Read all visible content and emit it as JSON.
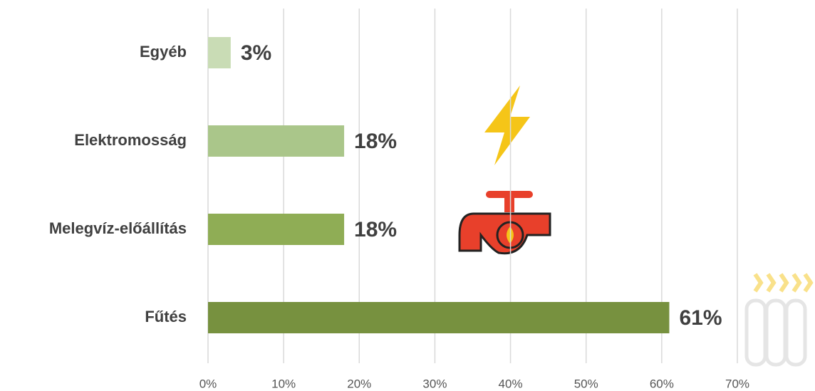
{
  "chart_data": {
    "type": "barh",
    "categories": [
      "Egyéb",
      "Elektromosság",
      "Melegvíz-előállítás",
      "Fűtés"
    ],
    "values": [
      3,
      18,
      18,
      61
    ],
    "value_labels": [
      "3%",
      "18%",
      "18%",
      "61%"
    ],
    "colors": [
      "#c9dcb5",
      "#aac68a",
      "#8fad55",
      "#77913f"
    ],
    "xlim": [
      0,
      70
    ],
    "xticks": [
      {
        "value": 0,
        "label": "0%"
      },
      {
        "value": 10,
        "label": "10%"
      },
      {
        "value": 20,
        "label": "20%"
      },
      {
        "value": 30,
        "label": "30%"
      },
      {
        "value": 40,
        "label": "40%"
      },
      {
        "value": 50,
        "label": "50%"
      },
      {
        "value": 60,
        "label": "60%"
      },
      {
        "value": 70,
        "label": "70%"
      }
    ],
    "grid": true
  }
}
